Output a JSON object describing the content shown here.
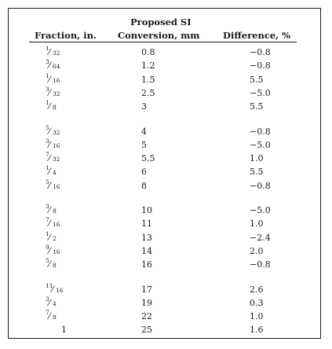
{
  "table": {
    "headers": {
      "fraction": "Fraction, in.",
      "si_line1": "Proposed SI",
      "si_line2": "Conversion, mm",
      "difference": "Difference, %"
    },
    "groups": [
      [
        {
          "num": "1",
          "den": "32",
          "si": "0.8",
          "diff": "−0.8"
        },
        {
          "num": "3",
          "den": "64",
          "si": "1.2",
          "diff": "−0.8"
        },
        {
          "num": "1",
          "den": "16",
          "si": "1.5",
          "diff": "5.5"
        },
        {
          "num": "3",
          "den": "32",
          "si": "2.5",
          "diff": "−5.0"
        },
        {
          "num": "1",
          "den": "8",
          "si": "3",
          "diff": "5.5"
        }
      ],
      [
        {
          "num": "5",
          "den": "32",
          "si": "4",
          "diff": "−0.8"
        },
        {
          "num": "3",
          "den": "16",
          "si": "5",
          "diff": "−5.0"
        },
        {
          "num": "7",
          "den": "32",
          "si": "5.5",
          "diff": "1.0"
        },
        {
          "num": "1",
          "den": "4",
          "si": "6",
          "diff": "5.5"
        },
        {
          "num": "5",
          "den": "16",
          "si": "8",
          "diff": "−0.8"
        }
      ],
      [
        {
          "num": "3",
          "den": "8",
          "si": "10",
          "diff": "−5.0"
        },
        {
          "num": "7",
          "den": "16",
          "si": "11",
          "diff": "1.0"
        },
        {
          "num": "1",
          "den": "2",
          "si": "13",
          "diff": "−2.4"
        },
        {
          "num": "9",
          "den": "16",
          "si": "14",
          "diff": "2.0"
        },
        {
          "num": "5",
          "den": "8",
          "si": "16",
          "diff": "−0.8"
        }
      ],
      [
        {
          "num": "11",
          "den": "16",
          "si": "17",
          "diff": "2.6"
        },
        {
          "num": "3",
          "den": "4",
          "si": "19",
          "diff": "0.3"
        },
        {
          "num": "7",
          "den": "8",
          "si": "22",
          "diff": "1.0"
        },
        {
          "whole": "1",
          "si": "25",
          "diff": "1.6"
        }
      ]
    ]
  }
}
